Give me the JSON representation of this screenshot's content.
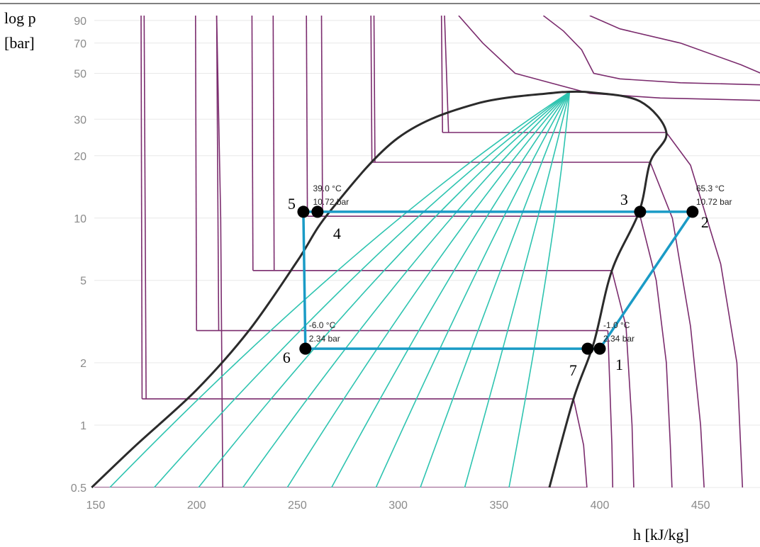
{
  "chart_data": {
    "type": "line",
    "title": "",
    "xlabel": "h [kJ/kg]",
    "ylabel_line1": "log p",
    "ylabel_line2": "[bar]",
    "y_scale": "log",
    "xlim": [
      147,
      480
    ],
    "ylim": [
      0.5,
      95
    ],
    "x_ticks": [
      150,
      200,
      250,
      300,
      350,
      400,
      450
    ],
    "y_ticks": [
      0.5,
      1,
      2,
      5,
      10,
      20,
      30,
      50,
      70,
      90
    ],
    "grid": "horizontal",
    "colors": {
      "dome": "#2b2b2b",
      "isotherm": "#7b2c6e",
      "quality_lines": "#2ec4b0",
      "cycle": "#1a9bc6",
      "points": "#000000"
    },
    "saturation_dome": {
      "liquid": {
        "h": [
          148,
          170,
          200,
          226,
          250,
          266,
          300,
          339,
          381
        ],
        "p": [
          0.5,
          0.8,
          1.48,
          2.86,
          6.2,
          10.72,
          24.4,
          35.7,
          40.6
        ]
      },
      "vapor": {
        "h": [
          381,
          396,
          420,
          433,
          425,
          419.5,
          406,
          397,
          387,
          375
        ],
        "p": [
          40.6,
          40.4,
          36.6,
          25.9,
          18.6,
          10.72,
          5.58,
          2.49,
          1.34,
          0.5
        ]
      }
    },
    "quality_lines": [
      {
        "h_low": 157,
        "h_high": 385.5
      },
      {
        "h_low": 179,
        "h_high": 387
      },
      {
        "h_low": 201,
        "h_high": 388.5
      },
      {
        "h_low": 223,
        "h_high": 390
      },
      {
        "h_low": 245,
        "h_high": 392
      },
      {
        "h_low": 267,
        "h_high": 393.5
      },
      {
        "h_low": 289,
        "h_high": 395
      },
      {
        "h_low": 311,
        "h_high": 396.5
      },
      {
        "h_low": 333,
        "h_high": 398
      },
      {
        "h_low": 355,
        "h_high": 399.5
      }
    ],
    "isotherms": [
      {
        "p_sat": 0.5,
        "h_liq": 148,
        "h_vap": 375,
        "liq_end_p": 95,
        "vap_curve": {
          "h": [
            375,
            393,
            394,
            394.5
          ],
          "p": [
            0.5,
            0.5,
            0.45,
            0.4
          ]
        }
      },
      {
        "p_sat": 1.34,
        "h_liq": 173,
        "h_vap": 387,
        "liq_end_p": 95,
        "vap_curve": {
          "h": [
            387,
            392,
            394
          ],
          "p": [
            1.34,
            0.8,
            0.45
          ]
        }
      },
      {
        "p_sat": 2.86,
        "h_liq": 200,
        "h_vap": 404,
        "liq_end_p": 95,
        "vap_curve": {
          "h": [
            404,
            406,
            406.5
          ],
          "p": [
            2.86,
            0.8,
            0.45
          ]
        }
      },
      {
        "p_sat": 5.58,
        "h_liq": 228,
        "h_vap": 406,
        "liq_end_p": 95,
        "vap_curve": {
          "h": [
            406,
            413,
            416,
            417
          ],
          "p": [
            5.58,
            3.0,
            1.0,
            0.45
          ]
        }
      },
      {
        "p_sat": 10.2,
        "h_liq": 255,
        "h_vap": 420,
        "liq_end_p": 95,
        "vap_curve": {
          "h": [
            420,
            428,
            433,
            435,
            436
          ],
          "p": [
            10.2,
            5.0,
            2.0,
            0.8,
            0.45
          ]
        }
      },
      {
        "p_sat": 18.6,
        "h_liq": 287,
        "h_vap": 425,
        "liq_end_p": 95,
        "vap_curve": {
          "h": [
            425,
            436,
            445,
            450,
            452
          ],
          "p": [
            18.6,
            10.0,
            3.0,
            1.0,
            0.45
          ]
        }
      },
      {
        "p_sat": 25.9,
        "h_liq": 322,
        "h_vap": 433,
        "liq_end_p": 95,
        "vap_curve": {
          "h": [
            433,
            445,
            460,
            468,
            471
          ],
          "p": [
            25.9,
            18.0,
            6.0,
            2.0,
            0.45
          ]
        }
      }
    ],
    "supercritical_isotherms": [
      {
        "h": [
          210,
          212,
          213
        ],
        "p": [
          95,
          10,
          0.5
        ]
      },
      {
        "h": [
          330,
          342,
          358,
          395,
          430,
          480
        ],
        "p": [
          95,
          70,
          50,
          40,
          38,
          37
        ]
      },
      {
        "h": [
          372,
          382,
          391,
          397,
          410,
          440,
          480
        ],
        "p": [
          95,
          80,
          65,
          50,
          47,
          45,
          44
        ]
      },
      {
        "h": [
          395,
          410,
          440,
          470,
          480
        ],
        "p": [
          95,
          82,
          70,
          55,
          50
        ]
      }
    ],
    "liquid_isotherms": [
      {
        "h": [
          138,
          136
        ],
        "p": [
          95,
          0.5
        ]
      },
      {
        "h": [
          147,
          147.5
        ],
        "p": [
          95,
          10
        ]
      },
      {
        "h": [
          174,
          175
        ],
        "p": [
          95,
          1.34
        ]
      },
      {
        "h": [
          210,
          211
        ],
        "p": [
          95,
          2.86
        ]
      },
      {
        "h": [
          238,
          238.5
        ],
        "p": [
          95,
          5.58
        ]
      },
      {
        "h": [
          262,
          262.5
        ],
        "p": [
          95,
          10.72
        ]
      },
      {
        "h": [
          288,
          288.5
        ],
        "p": [
          95,
          18.6
        ]
      },
      {
        "h": [
          323,
          325
        ],
        "p": [
          95,
          26
        ]
      }
    ],
    "cycle": {
      "points": [
        {
          "id": "1",
          "h": 400,
          "p": 2.34
        },
        {
          "id": "2",
          "h": 446,
          "p": 10.72
        },
        {
          "id": "3",
          "h": 420,
          "p": 10.72
        },
        {
          "id": "4",
          "h": 260,
          "p": 10.72
        },
        {
          "id": "5",
          "h": 253,
          "p": 10.72
        },
        {
          "id": "6",
          "h": 254,
          "p": 2.34
        },
        {
          "id": "7",
          "h": 394,
          "p": 2.34
        }
      ],
      "path": {
        "h": [
          254,
          394,
          400,
          446,
          420,
          260,
          253,
          254
        ],
        "p": [
          2.34,
          2.34,
          2.34,
          10.72,
          10.72,
          10.72,
          10.72,
          2.34
        ]
      }
    },
    "annotations": [
      {
        "temp": "39.0 °C",
        "pressure": "10.72 bar",
        "h": 256,
        "p": 10.72
      },
      {
        "temp": "65.3 °C",
        "pressure": "10.72 bar",
        "h": 446,
        "p": 10.72
      },
      {
        "temp": "-6.0 °C",
        "pressure": "2.34 bar",
        "h": 254,
        "p": 2.34
      },
      {
        "temp": "-1.0 °C",
        "pressure": "2.34 bar",
        "h": 400,
        "p": 2.34
      }
    ]
  }
}
